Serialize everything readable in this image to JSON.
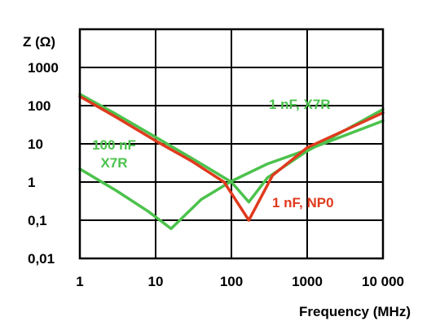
{
  "chart_data": {
    "type": "line",
    "title": "",
    "ylabel": "Z  (Ω)",
    "xlabel": "Frequency (MHz)",
    "x_scale": "log",
    "y_scale": "log",
    "xlim": [
      1,
      10000
    ],
    "ylim": [
      0.01,
      10000
    ],
    "grid": true,
    "x_ticks": [
      1,
      10,
      100,
      1000,
      10000
    ],
    "x_tick_labels": [
      "1",
      "10",
      "100",
      "1000",
      "10 000"
    ],
    "y_ticks": [
      0.01,
      0.1,
      1,
      10,
      100,
      1000
    ],
    "y_tick_labels": [
      "0,01",
      "0,1",
      "1",
      "10",
      "100",
      "1000"
    ],
    "series": [
      {
        "name": "100 nF\nX7R",
        "label_lines": [
          "100 nF",
          "X7R"
        ],
        "color": "#4cc24c",
        "x": [
          1,
          3,
          8,
          16,
          40,
          100,
          300,
          1000,
          10000
        ],
        "y": [
          2.2,
          0.6,
          0.17,
          0.06,
          0.35,
          1.05,
          3.0,
          7.0,
          40
        ]
      },
      {
        "name": "1 nF, X7R",
        "label_lines": [
          "1 nF, X7R"
        ],
        "color": "#4cc24c",
        "x": [
          1,
          3,
          10,
          30,
          100,
          170,
          300,
          1000,
          10000
        ],
        "y": [
          200,
          60,
          15,
          4.2,
          1.0,
          0.3,
          1.3,
          6.5,
          80
        ]
      },
      {
        "name": "1 nF, NP0",
        "label_lines": [
          "1 nF, NP0"
        ],
        "color": "#e03a1e",
        "x": [
          1,
          3,
          10,
          30,
          80,
          170,
          350,
          1000,
          10000
        ],
        "y": [
          175,
          50,
          12,
          3.5,
          1.0,
          0.1,
          1.5,
          8.0,
          65
        ]
      }
    ]
  }
}
